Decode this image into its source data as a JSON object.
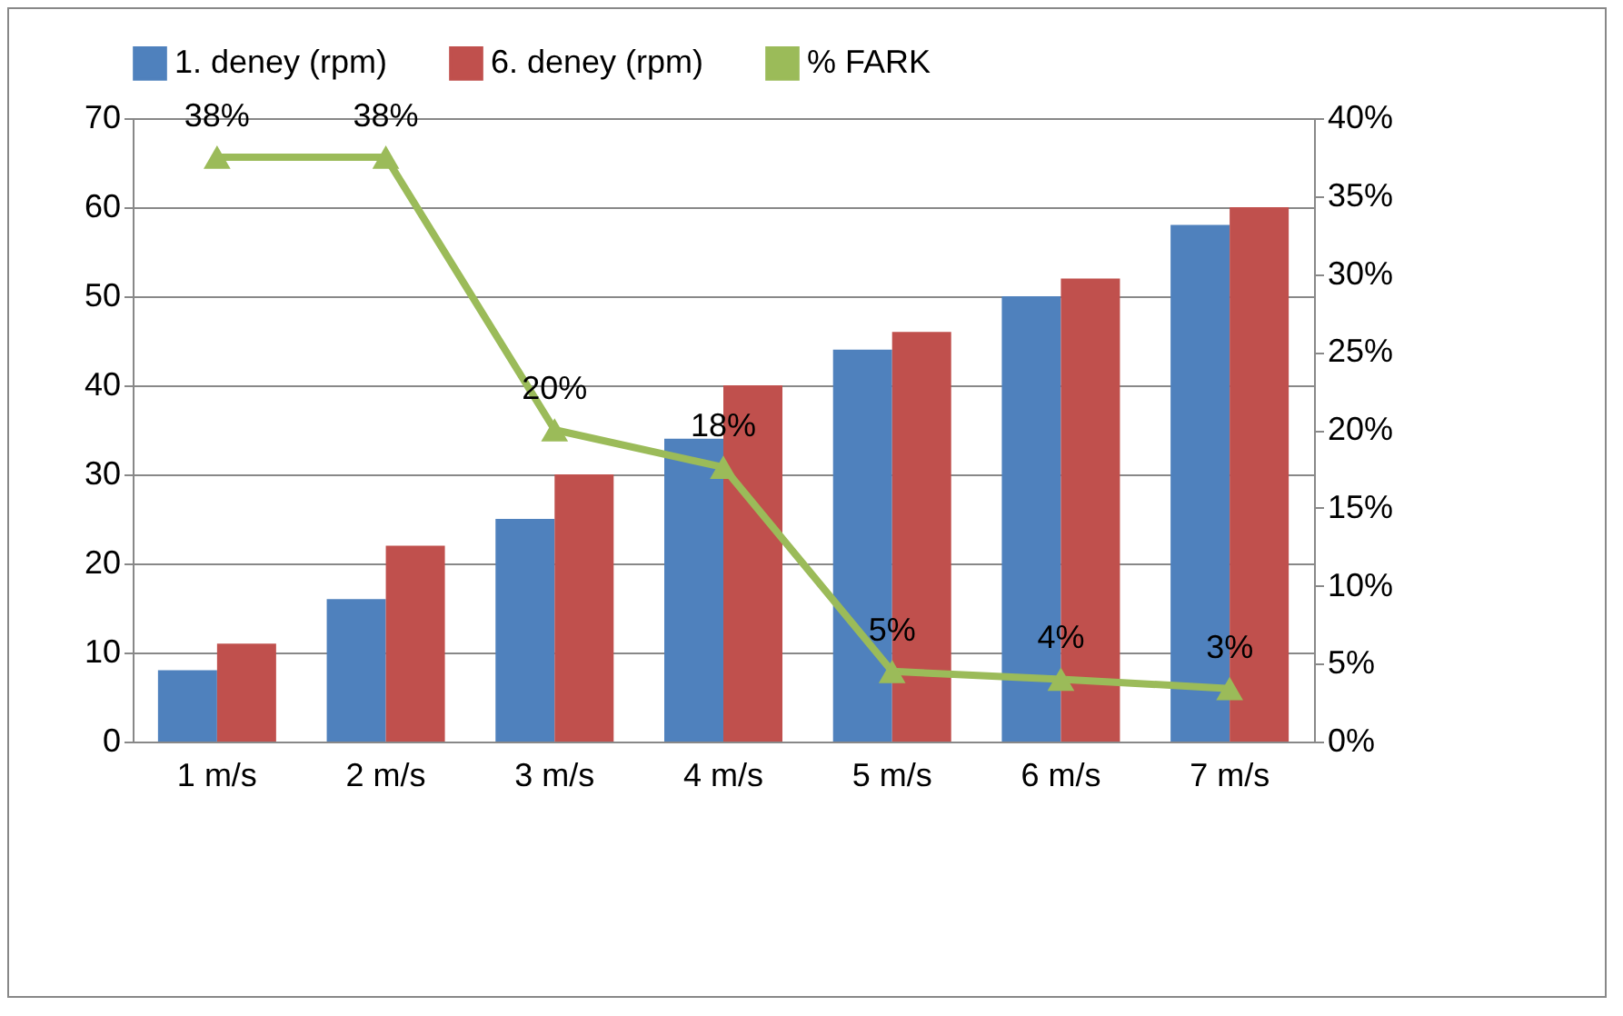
{
  "chart_data": {
    "type": "bar",
    "categories": [
      "1 m/s",
      "2 m/s",
      "3 m/s",
      "4 m/s",
      "5 m/s",
      "6 m/s",
      "7 m/s"
    ],
    "series": [
      {
        "name": "1. deney (rpm)",
        "color": "#4f81bd",
        "values": [
          8,
          16,
          25,
          34,
          44,
          50,
          58
        ]
      },
      {
        "name": "6. deney (rpm)",
        "color": "#c0504d",
        "values": [
          11,
          22,
          30,
          40,
          46,
          52,
          60
        ]
      },
      {
        "name": "% FARK",
        "type": "line",
        "axis": "y2",
        "color": "#9bbb59",
        "marker": "triangle",
        "values": [
          37.5,
          37.5,
          20,
          17.6,
          4.5,
          4,
          3.4
        ],
        "value_labels": [
          "38%",
          "38%",
          "20%",
          "18%",
          "5%",
          "4%",
          "3%"
        ]
      }
    ],
    "ylim": [
      0,
      70
    ],
    "yticks": [
      0,
      10,
      20,
      30,
      40,
      50,
      60,
      70
    ],
    "y2lim": [
      0,
      40
    ],
    "y2ticks": [
      {
        "value": 0,
        "label": "0%"
      },
      {
        "value": 5,
        "label": "5%"
      },
      {
        "value": 10,
        "label": "10%"
      },
      {
        "value": 15,
        "label": "15%"
      },
      {
        "value": 20,
        "label": "20%"
      },
      {
        "value": 25,
        "label": "25%"
      },
      {
        "value": 30,
        "label": "30%"
      },
      {
        "value": 35,
        "label": "35%"
      },
      {
        "value": 40,
        "label": "40%"
      }
    ],
    "grid": "y",
    "legend": "top"
  }
}
